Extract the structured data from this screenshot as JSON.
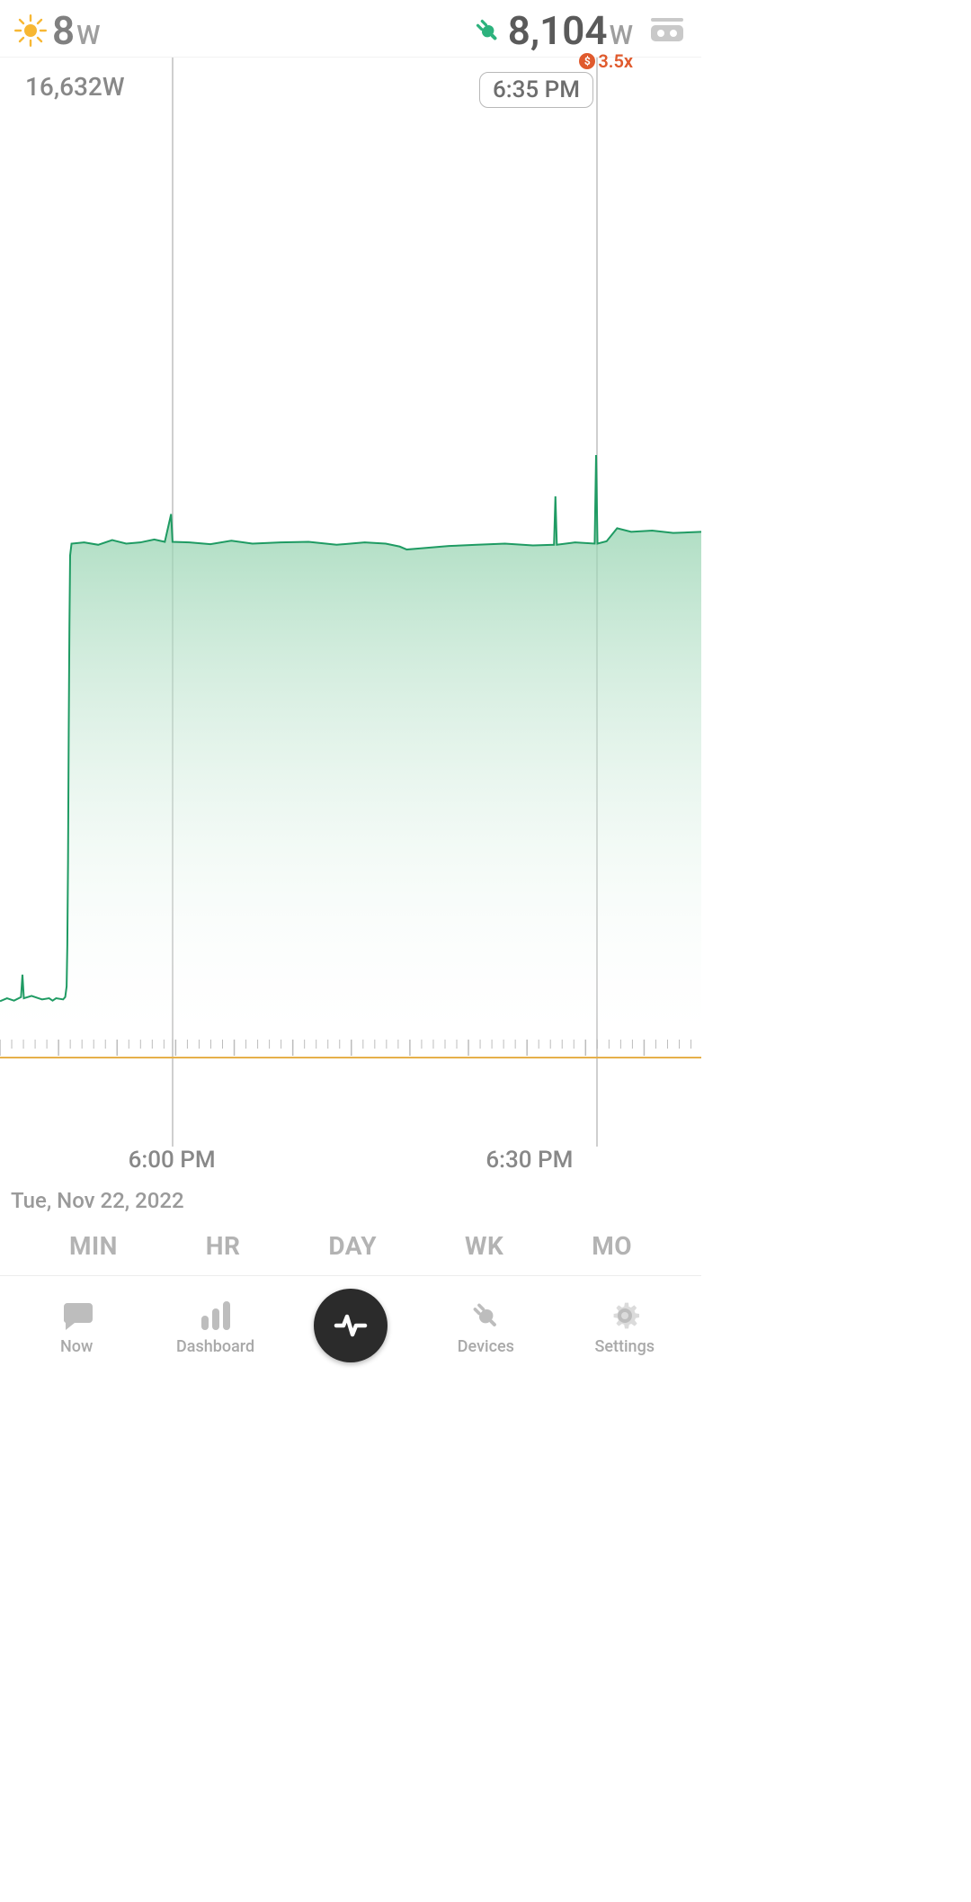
{
  "theme": {
    "bg": "#ffffff",
    "text_muted": "#808080",
    "text_mid": "#5a5a5a",
    "text_light": "#9e9e9e",
    "divider": "#ececec",
    "vline": "#cfcfcf",
    "badge_border": "#b8b8b8",
    "accent_green": "#2db27d",
    "sun": "#f7b733",
    "plug": "#2db27d",
    "cost": "#e05a2d",
    "nav_icon": "#bdbdbd",
    "center_btn": "#2b2b2b"
  },
  "topbar": {
    "solar": {
      "value": "8",
      "unit": "W"
    },
    "usage": {
      "value": "8,104",
      "unit": "W"
    },
    "cost": {
      "symbol": "$",
      "text": "3.5x"
    }
  },
  "chart": {
    "type": "area",
    "ymax": 16632,
    "ymax_label": "16,632W",
    "ymin": 0,
    "time_badge": "6:35 PM",
    "marker_positions_pct": [
      24.5,
      85
    ],
    "line_color": "#1f9b63",
    "fill_top": "#87cda5",
    "fill_bottom": "#ffffff",
    "tick_color": "#bdbdbd",
    "baseline_color": "#e6b04a",
    "minor_tick_every_pct": 1.67,
    "major_tick_every_pct": 8.35,
    "series": [
      {
        "x": 0.0,
        "y": 650
      },
      {
        "x": 1.0,
        "y": 700
      },
      {
        "x": 2.0,
        "y": 660
      },
      {
        "x": 3.0,
        "y": 720
      },
      {
        "x": 3.2,
        "y": 1100
      },
      {
        "x": 3.4,
        "y": 700
      },
      {
        "x": 4.5,
        "y": 740
      },
      {
        "x": 5.5,
        "y": 700
      },
      {
        "x": 6.0,
        "y": 680
      },
      {
        "x": 7.0,
        "y": 700
      },
      {
        "x": 7.5,
        "y": 660
      },
      {
        "x": 8.0,
        "y": 700
      },
      {
        "x": 9.0,
        "y": 680
      },
      {
        "x": 9.3,
        "y": 720
      },
      {
        "x": 9.5,
        "y": 900
      },
      {
        "x": 9.6,
        "y": 1600
      },
      {
        "x": 9.7,
        "y": 3000
      },
      {
        "x": 9.8,
        "y": 5200
      },
      {
        "x": 9.9,
        "y": 7000
      },
      {
        "x": 10.0,
        "y": 8200
      },
      {
        "x": 10.2,
        "y": 8400
      },
      {
        "x": 12,
        "y": 8420
      },
      {
        "x": 14,
        "y": 8380
      },
      {
        "x": 16,
        "y": 8460
      },
      {
        "x": 18,
        "y": 8400
      },
      {
        "x": 20,
        "y": 8420
      },
      {
        "x": 22,
        "y": 8470
      },
      {
        "x": 23.5,
        "y": 8430
      },
      {
        "x": 24.4,
        "y": 8900
      },
      {
        "x": 24.6,
        "y": 8430
      },
      {
        "x": 27,
        "y": 8420
      },
      {
        "x": 30,
        "y": 8390
      },
      {
        "x": 33,
        "y": 8450
      },
      {
        "x": 36,
        "y": 8400
      },
      {
        "x": 40,
        "y": 8420
      },
      {
        "x": 44,
        "y": 8430
      },
      {
        "x": 48,
        "y": 8380
      },
      {
        "x": 52,
        "y": 8420
      },
      {
        "x": 55,
        "y": 8400
      },
      {
        "x": 57,
        "y": 8350
      },
      {
        "x": 58,
        "y": 8300
      },
      {
        "x": 60,
        "y": 8320
      },
      {
        "x": 64,
        "y": 8360
      },
      {
        "x": 68,
        "y": 8380
      },
      {
        "x": 72,
        "y": 8400
      },
      {
        "x": 76,
        "y": 8370
      },
      {
        "x": 79.0,
        "y": 8380
      },
      {
        "x": 79.2,
        "y": 9200
      },
      {
        "x": 79.4,
        "y": 8380
      },
      {
        "x": 82,
        "y": 8420
      },
      {
        "x": 84.8,
        "y": 8400
      },
      {
        "x": 85.0,
        "y": 9900
      },
      {
        "x": 85.2,
        "y": 8400
      },
      {
        "x": 86.5,
        "y": 8440
      },
      {
        "x": 88,
        "y": 8660
      },
      {
        "x": 90,
        "y": 8600
      },
      {
        "x": 93,
        "y": 8620
      },
      {
        "x": 96,
        "y": 8580
      },
      {
        "x": 100,
        "y": 8600
      }
    ],
    "x_axis": {
      "labels": [
        {
          "pos_pct": 24.5,
          "text": "6:00 PM"
        },
        {
          "pos_pct": 75.5,
          "text": "6:30 PM"
        }
      ]
    },
    "date_label": "Tue, Nov 22, 2022"
  },
  "range_tabs": {
    "items": [
      "MIN",
      "HR",
      "DAY",
      "WK",
      "MO"
    ],
    "active_index": 1
  },
  "bottom_nav": {
    "items": [
      {
        "key": "now",
        "label": "Now"
      },
      {
        "key": "dashboard",
        "label": "Dashboard"
      },
      {
        "key": "pulse",
        "label": ""
      },
      {
        "key": "devices",
        "label": "Devices"
      },
      {
        "key": "settings",
        "label": "Settings"
      }
    ]
  }
}
